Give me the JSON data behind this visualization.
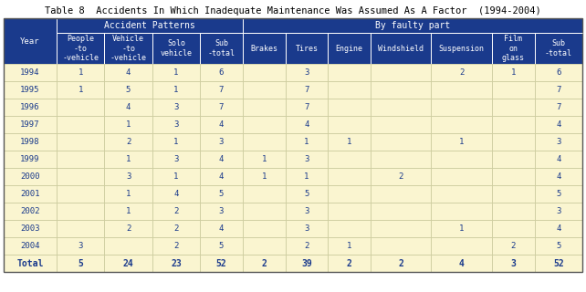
{
  "title": "Table 8  Accidents In Which Inadequate Maintenance Was Assumed As A Factor  (1994-2004)",
  "header_bg": "#1a3a8c",
  "header_text": "#ffffff",
  "row_bg": "#faf5d0",
  "col_headers": [
    "Year",
    "People\n-to\n-vehicle",
    "Vehicle\n-to\n-vehicle",
    "Solo\nvehicle",
    "Sub\n-total",
    "Brakes",
    "Tires",
    "Engine",
    "Windshield",
    "Suspension",
    "Film\non\nglass",
    "Sub\n-total"
  ],
  "group1_label": "Accident Patterns",
  "group2_label": "By faulty part",
  "rows": [
    [
      "1994",
      "1",
      "4",
      "1",
      "6",
      "",
      "3",
      "",
      "",
      "2",
      "1",
      "6"
    ],
    [
      "1995",
      "1",
      "5",
      "1",
      "7",
      "",
      "7",
      "",
      "",
      "",
      "",
      "7"
    ],
    [
      "1996",
      "",
      "4",
      "3",
      "7",
      "",
      "7",
      "",
      "",
      "",
      "",
      "7"
    ],
    [
      "1997",
      "",
      "1",
      "3",
      "4",
      "",
      "4",
      "",
      "",
      "",
      "",
      "4"
    ],
    [
      "1998",
      "",
      "2",
      "1",
      "3",
      "",
      "1",
      "1",
      "",
      "1",
      "",
      "3"
    ],
    [
      "1999",
      "",
      "1",
      "3",
      "4",
      "1",
      "3",
      "",
      "",
      "",
      "",
      "4"
    ],
    [
      "2000",
      "",
      "3",
      "1",
      "4",
      "1",
      "1",
      "",
      "2",
      "",
      "",
      "4"
    ],
    [
      "2001",
      "",
      "1",
      "4",
      "5",
      "",
      "5",
      "",
      "",
      "",
      "",
      "5"
    ],
    [
      "2002",
      "",
      "1",
      "2",
      "3",
      "",
      "3",
      "",
      "",
      "",
      "",
      "3"
    ],
    [
      "2003",
      "",
      "2",
      "2",
      "4",
      "",
      "3",
      "",
      "",
      "1",
      "",
      "4"
    ],
    [
      "2004",
      "3",
      "",
      "2",
      "5",
      "",
      "2",
      "1",
      "",
      "",
      "2",
      "5"
    ],
    [
      "Total",
      "5",
      "24",
      "23",
      "52",
      "2",
      "39",
      "2",
      "2",
      "4",
      "3",
      "52"
    ]
  ],
  "col_props": [
    0.082,
    0.074,
    0.074,
    0.074,
    0.066,
    0.066,
    0.066,
    0.066,
    0.094,
    0.094,
    0.066,
    0.074
  ]
}
